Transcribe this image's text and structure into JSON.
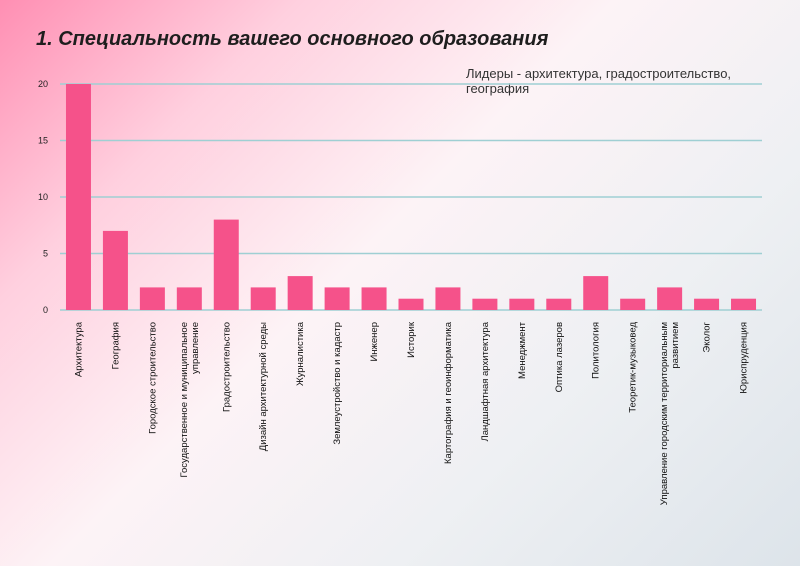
{
  "title": "1. Специальность вашего основного образования",
  "note": "Лидеры - архитектура, градостроительство, география",
  "colors": {
    "bar": "#f5528a",
    "grid": "#9fcfd3"
  },
  "chart_data": {
    "type": "bar",
    "categories": [
      "Архитектура",
      "География",
      "Городское строительство",
      [
        "Государственное и муниципальное",
        "управление"
      ],
      "Градостроительство",
      "Дизайн архитектурной среды",
      "Журналистика",
      "Землеустройство и кадастр",
      "Инженер",
      "Историк",
      "Картография и геоинформатика",
      "Ландшафтная архитектура",
      "Менеджмент",
      "Оптика лазеров",
      "Политология",
      "Теоретик-музыковед",
      [
        "Управление городским территориальным",
        "развитием"
      ],
      "Эколог",
      "Юриспруденция"
    ],
    "values": [
      20,
      7,
      2,
      2,
      8,
      2,
      3,
      2,
      2,
      1,
      2,
      1,
      1,
      1,
      3,
      1,
      2,
      1,
      1
    ],
    "yticks": [
      "0",
      "5",
      "10",
      "15",
      "20"
    ],
    "ylim": [
      0,
      20
    ],
    "grid": true
  }
}
